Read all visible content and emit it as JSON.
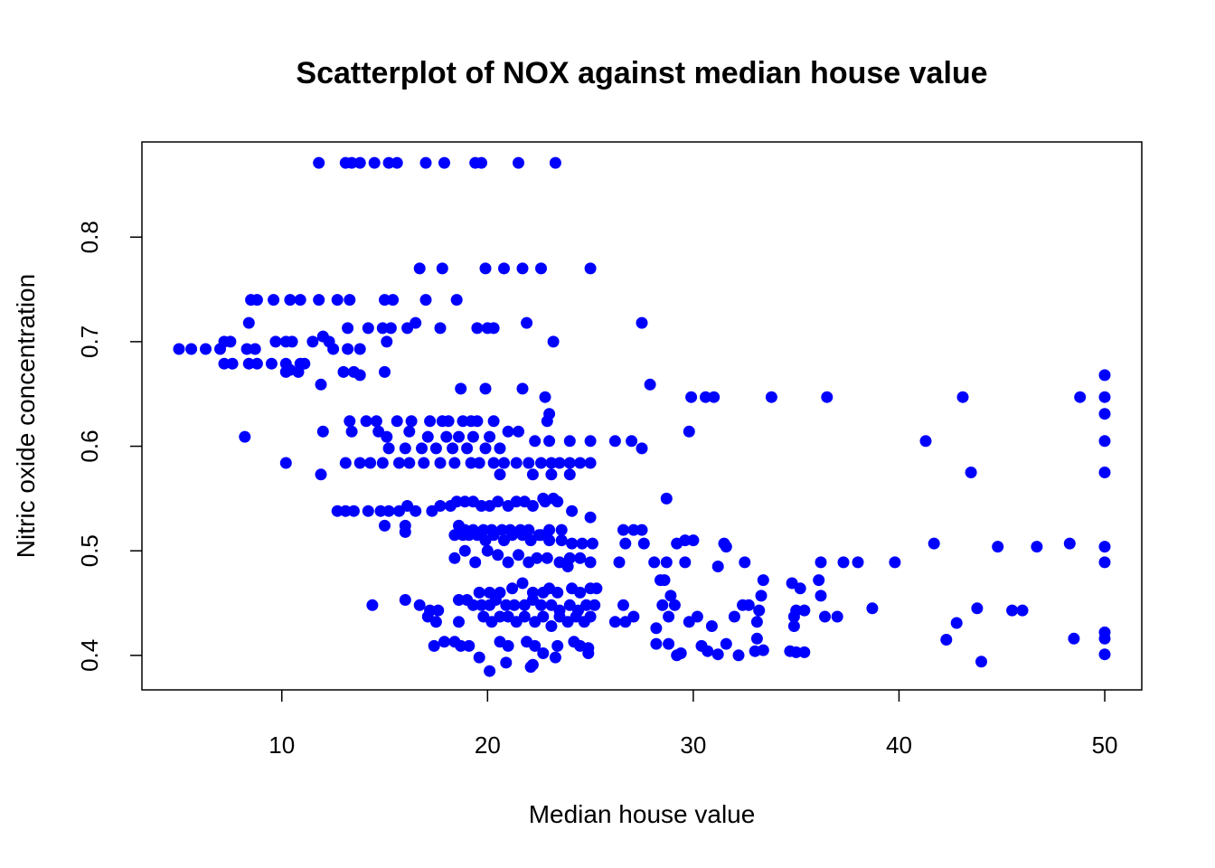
{
  "chart_data": {
    "type": "scatter",
    "title": "Scatterplot of NOX against median house value",
    "xlabel": "Median house value",
    "ylabel": "Nitric oxide concentration",
    "xlim": [
      3.2,
      51.8
    ],
    "ylim": [
      0.367,
      0.891
    ],
    "xticks": [
      10,
      20,
      30,
      40,
      50
    ],
    "yticks": [
      0.4,
      0.5,
      0.6,
      0.7,
      0.8
    ],
    "xtick_labels": [
      "10",
      "20",
      "30",
      "40",
      "50"
    ],
    "ytick_labels": [
      "0.4",
      "0.5",
      "0.6",
      "0.7",
      "0.8"
    ],
    "grid": false,
    "legend": "none",
    "point_color": "#0000ff",
    "points": [
      [
        11.8,
        0.871
      ],
      [
        13.1,
        0.871
      ],
      [
        13.4,
        0.871
      ],
      [
        13.8,
        0.871
      ],
      [
        14.5,
        0.871
      ],
      [
        15.2,
        0.871
      ],
      [
        15.6,
        0.871
      ],
      [
        17.0,
        0.871
      ],
      [
        17.9,
        0.871
      ],
      [
        19.4,
        0.871
      ],
      [
        19.7,
        0.871
      ],
      [
        21.5,
        0.871
      ],
      [
        23.3,
        0.871
      ],
      [
        16.7,
        0.77
      ],
      [
        17.8,
        0.77
      ],
      [
        19.9,
        0.77
      ],
      [
        20.8,
        0.77
      ],
      [
        21.7,
        0.77
      ],
      [
        22.6,
        0.77
      ],
      [
        25.0,
        0.77
      ],
      [
        8.5,
        0.74
      ],
      [
        8.8,
        0.74
      ],
      [
        9.6,
        0.74
      ],
      [
        10.4,
        0.74
      ],
      [
        10.9,
        0.74
      ],
      [
        11.8,
        0.74
      ],
      [
        12.7,
        0.74
      ],
      [
        13.3,
        0.74
      ],
      [
        15.0,
        0.74
      ],
      [
        15.4,
        0.74
      ],
      [
        17.0,
        0.74
      ],
      [
        18.5,
        0.74
      ],
      [
        8.4,
        0.718
      ],
      [
        13.2,
        0.713
      ],
      [
        14.2,
        0.713
      ],
      [
        14.9,
        0.713
      ],
      [
        15.3,
        0.713
      ],
      [
        16.1,
        0.713
      ],
      [
        16.5,
        0.718
      ],
      [
        17.7,
        0.713
      ],
      [
        19.5,
        0.713
      ],
      [
        20.0,
        0.713
      ],
      [
        20.3,
        0.713
      ],
      [
        21.9,
        0.718
      ],
      [
        27.5,
        0.718
      ],
      [
        5.0,
        0.693
      ],
      [
        5.6,
        0.693
      ],
      [
        6.3,
        0.693
      ],
      [
        7.0,
        0.693
      ],
      [
        7.2,
        0.7
      ],
      [
        7.5,
        0.7
      ],
      [
        8.3,
        0.693
      ],
      [
        8.7,
        0.693
      ],
      [
        9.7,
        0.7
      ],
      [
        10.2,
        0.7
      ],
      [
        10.5,
        0.7
      ],
      [
        11.5,
        0.7
      ],
      [
        12.0,
        0.705
      ],
      [
        12.3,
        0.7
      ],
      [
        12.5,
        0.693
      ],
      [
        13.2,
        0.693
      ],
      [
        13.8,
        0.693
      ],
      [
        15.1,
        0.7
      ],
      [
        23.2,
        0.7
      ],
      [
        7.2,
        0.679
      ],
      [
        7.6,
        0.679
      ],
      [
        8.4,
        0.679
      ],
      [
        8.8,
        0.679
      ],
      [
        9.5,
        0.679
      ],
      [
        10.2,
        0.679
      ],
      [
        10.4,
        0.673
      ],
      [
        10.9,
        0.679
      ],
      [
        11.1,
        0.679
      ],
      [
        13.0,
        0.671
      ],
      [
        13.5,
        0.671
      ],
      [
        13.8,
        0.668
      ],
      [
        15.0,
        0.671
      ],
      [
        10.2,
        0.671
      ],
      [
        10.8,
        0.671
      ],
      [
        11.9,
        0.659
      ],
      [
        27.9,
        0.659
      ],
      [
        18.7,
        0.655
      ],
      [
        19.9,
        0.655
      ],
      [
        21.7,
        0.655
      ],
      [
        22.8,
        0.647
      ],
      [
        29.9,
        0.647
      ],
      [
        30.6,
        0.647
      ],
      [
        31.0,
        0.647
      ],
      [
        33.8,
        0.647
      ],
      [
        36.5,
        0.647
      ],
      [
        43.1,
        0.647
      ],
      [
        48.8,
        0.647
      ],
      [
        50.0,
        0.647
      ],
      [
        50.0,
        0.668
      ],
      [
        50.0,
        0.631
      ],
      [
        23.0,
        0.631
      ],
      [
        13.3,
        0.624
      ],
      [
        14.1,
        0.624
      ],
      [
        14.6,
        0.624
      ],
      [
        15.6,
        0.624
      ],
      [
        16.3,
        0.624
      ],
      [
        17.2,
        0.624
      ],
      [
        17.8,
        0.624
      ],
      [
        18.1,
        0.624
      ],
      [
        18.8,
        0.624
      ],
      [
        19.2,
        0.624
      ],
      [
        19.5,
        0.624
      ],
      [
        20.3,
        0.624
      ],
      [
        22.9,
        0.624
      ],
      [
        8.2,
        0.609
      ],
      [
        12.0,
        0.614
      ],
      [
        13.4,
        0.614
      ],
      [
        14.7,
        0.614
      ],
      [
        15.1,
        0.609
      ],
      [
        16.2,
        0.614
      ],
      [
        17.1,
        0.609
      ],
      [
        18.0,
        0.609
      ],
      [
        18.6,
        0.609
      ],
      [
        19.3,
        0.609
      ],
      [
        20.1,
        0.609
      ],
      [
        21.0,
        0.614
      ],
      [
        21.5,
        0.614
      ],
      [
        22.3,
        0.605
      ],
      [
        23.0,
        0.605
      ],
      [
        24.0,
        0.605
      ],
      [
        25.0,
        0.605
      ],
      [
        26.2,
        0.605
      ],
      [
        27.0,
        0.605
      ],
      [
        27.5,
        0.598
      ],
      [
        29.8,
        0.614
      ],
      [
        41.3,
        0.605
      ],
      [
        50.0,
        0.605
      ],
      [
        15.2,
        0.598
      ],
      [
        16.0,
        0.598
      ],
      [
        16.8,
        0.598
      ],
      [
        17.5,
        0.598
      ],
      [
        18.3,
        0.598
      ],
      [
        19.0,
        0.598
      ],
      [
        19.9,
        0.598
      ],
      [
        20.6,
        0.598
      ],
      [
        10.2,
        0.584
      ],
      [
        13.1,
        0.584
      ],
      [
        13.8,
        0.584
      ],
      [
        14.3,
        0.584
      ],
      [
        14.9,
        0.584
      ],
      [
        15.7,
        0.584
      ],
      [
        16.2,
        0.584
      ],
      [
        16.9,
        0.584
      ],
      [
        17.7,
        0.584
      ],
      [
        18.4,
        0.584
      ],
      [
        19.2,
        0.584
      ],
      [
        19.6,
        0.584
      ],
      [
        20.3,
        0.584
      ],
      [
        20.8,
        0.584
      ],
      [
        21.4,
        0.584
      ],
      [
        22.0,
        0.584
      ],
      [
        22.6,
        0.584
      ],
      [
        23.1,
        0.584
      ],
      [
        23.5,
        0.584
      ],
      [
        24.0,
        0.584
      ],
      [
        24.5,
        0.584
      ],
      [
        25.0,
        0.584
      ],
      [
        11.9,
        0.573
      ],
      [
        20.6,
        0.573
      ],
      [
        22.2,
        0.573
      ],
      [
        23.1,
        0.573
      ],
      [
        24.0,
        0.573
      ],
      [
        43.5,
        0.575
      ],
      [
        50.0,
        0.575
      ],
      [
        28.7,
        0.55
      ],
      [
        22.7,
        0.55
      ],
      [
        23.2,
        0.55
      ],
      [
        12.7,
        0.538
      ],
      [
        13.1,
        0.538
      ],
      [
        13.5,
        0.538
      ],
      [
        14.2,
        0.538
      ],
      [
        14.8,
        0.538
      ],
      [
        15.2,
        0.538
      ],
      [
        15.7,
        0.538
      ],
      [
        16.1,
        0.543
      ],
      [
        16.5,
        0.538
      ],
      [
        17.3,
        0.538
      ],
      [
        17.7,
        0.543
      ],
      [
        18.2,
        0.543
      ],
      [
        18.5,
        0.547
      ],
      [
        18.9,
        0.547
      ],
      [
        19.3,
        0.547
      ],
      [
        19.7,
        0.543
      ],
      [
        20.1,
        0.543
      ],
      [
        20.5,
        0.547
      ],
      [
        21.0,
        0.543
      ],
      [
        21.4,
        0.547
      ],
      [
        21.8,
        0.547
      ],
      [
        22.2,
        0.543
      ],
      [
        22.8,
        0.547
      ],
      [
        23.4,
        0.547
      ],
      [
        24.1,
        0.538
      ],
      [
        15.0,
        0.524
      ],
      [
        16.0,
        0.524
      ],
      [
        16.0,
        0.518
      ],
      [
        18.6,
        0.524
      ],
      [
        18.9,
        0.52
      ],
      [
        19.3,
        0.52
      ],
      [
        19.8,
        0.52
      ],
      [
        20.2,
        0.52
      ],
      [
        20.7,
        0.52
      ],
      [
        21.1,
        0.52
      ],
      [
        21.6,
        0.52
      ],
      [
        22.0,
        0.52
      ],
      [
        22.5,
        0.515
      ],
      [
        23.0,
        0.52
      ],
      [
        23.6,
        0.52
      ],
      [
        25.0,
        0.532
      ],
      [
        26.6,
        0.52
      ],
      [
        27.1,
        0.52
      ],
      [
        27.5,
        0.52
      ],
      [
        18.4,
        0.515
      ],
      [
        18.8,
        0.515
      ],
      [
        19.1,
        0.515
      ],
      [
        19.5,
        0.515
      ],
      [
        19.9,
        0.51
      ],
      [
        20.3,
        0.515
      ],
      [
        20.8,
        0.51
      ],
      [
        21.2,
        0.515
      ],
      [
        21.7,
        0.515
      ],
      [
        22.1,
        0.51
      ],
      [
        22.6,
        0.515
      ],
      [
        23.0,
        0.51
      ],
      [
        23.6,
        0.51
      ],
      [
        24.1,
        0.507
      ],
      [
        24.6,
        0.507
      ],
      [
        25.1,
        0.507
      ],
      [
        26.7,
        0.507
      ],
      [
        27.6,
        0.507
      ],
      [
        29.2,
        0.507
      ],
      [
        29.6,
        0.51
      ],
      [
        30.0,
        0.51
      ],
      [
        31.5,
        0.507
      ],
      [
        31.6,
        0.504
      ],
      [
        41.7,
        0.507
      ],
      [
        44.8,
        0.504
      ],
      [
        46.7,
        0.504
      ],
      [
        48.3,
        0.507
      ],
      [
        50.0,
        0.504
      ],
      [
        18.4,
        0.493
      ],
      [
        18.9,
        0.5
      ],
      [
        19.4,
        0.489
      ],
      [
        20.0,
        0.5
      ],
      [
        20.5,
        0.496
      ],
      [
        21.0,
        0.489
      ],
      [
        21.5,
        0.496
      ],
      [
        22.0,
        0.489
      ],
      [
        22.4,
        0.493
      ],
      [
        22.9,
        0.493
      ],
      [
        23.5,
        0.489
      ],
      [
        24.0,
        0.493
      ],
      [
        24.5,
        0.493
      ],
      [
        25.0,
        0.489
      ],
      [
        26.4,
        0.489
      ],
      [
        28.1,
        0.489
      ],
      [
        28.7,
        0.489
      ],
      [
        29.6,
        0.489
      ],
      [
        31.2,
        0.485
      ],
      [
        32.5,
        0.489
      ],
      [
        36.2,
        0.489
      ],
      [
        37.3,
        0.489
      ],
      [
        38.0,
        0.489
      ],
      [
        39.8,
        0.489
      ],
      [
        50.0,
        0.489
      ],
      [
        23.9,
        0.485
      ],
      [
        28.4,
        0.472
      ],
      [
        28.6,
        0.472
      ],
      [
        33.4,
        0.472
      ],
      [
        34.8,
        0.469
      ],
      [
        36.1,
        0.472
      ],
      [
        19.6,
        0.46
      ],
      [
        20.1,
        0.46
      ],
      [
        20.6,
        0.46
      ],
      [
        21.2,
        0.464
      ],
      [
        21.7,
        0.469
      ],
      [
        22.2,
        0.46
      ],
      [
        22.7,
        0.46
      ],
      [
        23.0,
        0.464
      ],
      [
        23.4,
        0.46
      ],
      [
        24.1,
        0.464
      ],
      [
        24.5,
        0.46
      ],
      [
        25.0,
        0.464
      ],
      [
        25.3,
        0.464
      ],
      [
        28.9,
        0.457
      ],
      [
        33.3,
        0.457
      ],
      [
        35.2,
        0.464
      ],
      [
        36.2,
        0.457
      ],
      [
        14.4,
        0.448
      ],
      [
        16.0,
        0.453
      ],
      [
        16.7,
        0.448
      ],
      [
        17.2,
        0.443
      ],
      [
        17.6,
        0.443
      ],
      [
        18.6,
        0.453
      ],
      [
        19.0,
        0.453
      ],
      [
        19.3,
        0.448
      ],
      [
        19.7,
        0.448
      ],
      [
        20.1,
        0.448
      ],
      [
        20.4,
        0.453
      ],
      [
        20.9,
        0.448
      ],
      [
        21.3,
        0.448
      ],
      [
        21.8,
        0.448
      ],
      [
        22.2,
        0.453
      ],
      [
        22.6,
        0.448
      ],
      [
        23.1,
        0.448
      ],
      [
        23.5,
        0.443
      ],
      [
        24.0,
        0.448
      ],
      [
        24.4,
        0.443
      ],
      [
        24.8,
        0.448
      ],
      [
        25.2,
        0.448
      ],
      [
        26.6,
        0.448
      ],
      [
        28.5,
        0.448
      ],
      [
        29.1,
        0.448
      ],
      [
        32.4,
        0.448
      ],
      [
        32.7,
        0.448
      ],
      [
        33.2,
        0.443
      ],
      [
        35.0,
        0.443
      ],
      [
        35.4,
        0.443
      ],
      [
        38.7,
        0.445
      ],
      [
        43.8,
        0.445
      ],
      [
        45.5,
        0.443
      ],
      [
        46.0,
        0.443
      ],
      [
        17.1,
        0.437
      ],
      [
        17.5,
        0.432
      ],
      [
        18.6,
        0.432
      ],
      [
        19.8,
        0.437
      ],
      [
        20.2,
        0.432
      ],
      [
        20.6,
        0.437
      ],
      [
        21.0,
        0.437
      ],
      [
        21.4,
        0.432
      ],
      [
        21.8,
        0.437
      ],
      [
        22.3,
        0.432
      ],
      [
        22.7,
        0.437
      ],
      [
        23.1,
        0.428
      ],
      [
        23.5,
        0.437
      ],
      [
        23.9,
        0.432
      ],
      [
        24.3,
        0.437
      ],
      [
        24.7,
        0.432
      ],
      [
        25.0,
        0.437
      ],
      [
        26.2,
        0.432
      ],
      [
        26.7,
        0.432
      ],
      [
        27.1,
        0.437
      ],
      [
        28.2,
        0.426
      ],
      [
        28.8,
        0.437
      ],
      [
        29.8,
        0.432
      ],
      [
        30.2,
        0.437
      ],
      [
        30.9,
        0.428
      ],
      [
        32.0,
        0.437
      ],
      [
        33.1,
        0.432
      ],
      [
        34.9,
        0.437
      ],
      [
        34.9,
        0.428
      ],
      [
        36.4,
        0.437
      ],
      [
        37.0,
        0.437
      ],
      [
        42.8,
        0.431
      ],
      [
        50.0,
        0.422
      ],
      [
        17.4,
        0.409
      ],
      [
        17.9,
        0.413
      ],
      [
        18.4,
        0.413
      ],
      [
        18.7,
        0.409
      ],
      [
        19.1,
        0.409
      ],
      [
        19.6,
        0.398
      ],
      [
        20.1,
        0.385
      ],
      [
        20.6,
        0.413
      ],
      [
        21.0,
        0.409
      ],
      [
        20.9,
        0.393
      ],
      [
        21.9,
        0.413
      ],
      [
        22.3,
        0.409
      ],
      [
        22.7,
        0.402
      ],
      [
        22.1,
        0.389
      ],
      [
        22.2,
        0.391
      ],
      [
        23.4,
        0.409
      ],
      [
        23.3,
        0.398
      ],
      [
        24.2,
        0.413
      ],
      [
        24.5,
        0.409
      ],
      [
        24.9,
        0.402
      ],
      [
        24.9,
        0.407
      ],
      [
        28.2,
        0.411
      ],
      [
        28.8,
        0.411
      ],
      [
        29.2,
        0.4
      ],
      [
        29.4,
        0.402
      ],
      [
        30.4,
        0.409
      ],
      [
        30.7,
        0.404
      ],
      [
        31.6,
        0.411
      ],
      [
        31.2,
        0.401
      ],
      [
        32.2,
        0.4
      ],
      [
        33.1,
        0.416
      ],
      [
        33.0,
        0.404
      ],
      [
        33.4,
        0.405
      ],
      [
        34.7,
        0.404
      ],
      [
        35.0,
        0.403
      ],
      [
        35.4,
        0.403
      ],
      [
        42.3,
        0.415
      ],
      [
        44.0,
        0.394
      ],
      [
        48.5,
        0.416
      ],
      [
        50.0,
        0.416
      ],
      [
        50.0,
        0.401
      ]
    ]
  }
}
